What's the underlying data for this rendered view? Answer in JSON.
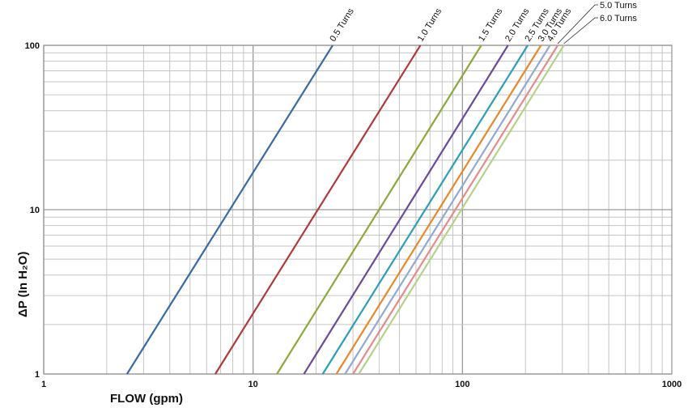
{
  "chart_data": {
    "type": "line",
    "xlabel": "FLOW (gpm)",
    "ylabel": "ΔP (In H₂O)",
    "xscale": "log",
    "yscale": "log",
    "xlim": [
      1,
      1000
    ],
    "ylim": [
      1,
      100
    ],
    "x_ticks": [
      "1",
      "10",
      "100",
      "1000"
    ],
    "y_ticks": [
      "1",
      "10",
      "100"
    ],
    "grid": true,
    "series": [
      {
        "name": "0.5 Turns",
        "color": "#3a6aa5",
        "x": [
          2.5,
          24.0
        ],
        "y": [
          1,
          100
        ]
      },
      {
        "name": "1.0 Turns",
        "color": "#b03a3a",
        "x": [
          6.6,
          63.0
        ],
        "y": [
          1,
          100
        ]
      },
      {
        "name": "1.5 Turns",
        "color": "#8aaa3c",
        "x": [
          13.0,
          123.0
        ],
        "y": [
          1,
          100
        ]
      },
      {
        "name": "2.0 Turns",
        "color": "#6a4a9a",
        "x": [
          17.5,
          165.0
        ],
        "y": [
          1,
          100
        ]
      },
      {
        "name": "2.5 Turns",
        "color": "#2b9fb5",
        "x": [
          21.5,
          205.0
        ],
        "y": [
          1,
          100
        ]
      },
      {
        "name": "3.0 Turns",
        "color": "#e8882a",
        "x": [
          25.0,
          237.0
        ],
        "y": [
          1,
          100
        ]
      },
      {
        "name": "4.0 Turns",
        "color": "#93a9d4",
        "x": [
          27.5,
          262.0
        ],
        "y": [
          1,
          100
        ]
      },
      {
        "name": "5.0 Turns",
        "color": "#e68a8a",
        "x": [
          30.0,
          285.0
        ],
        "y": [
          1,
          100
        ]
      },
      {
        "name": "6.0 Turns",
        "color": "#b5d28a",
        "x": [
          32.0,
          305.0
        ],
        "y": [
          1,
          100
        ]
      }
    ]
  }
}
